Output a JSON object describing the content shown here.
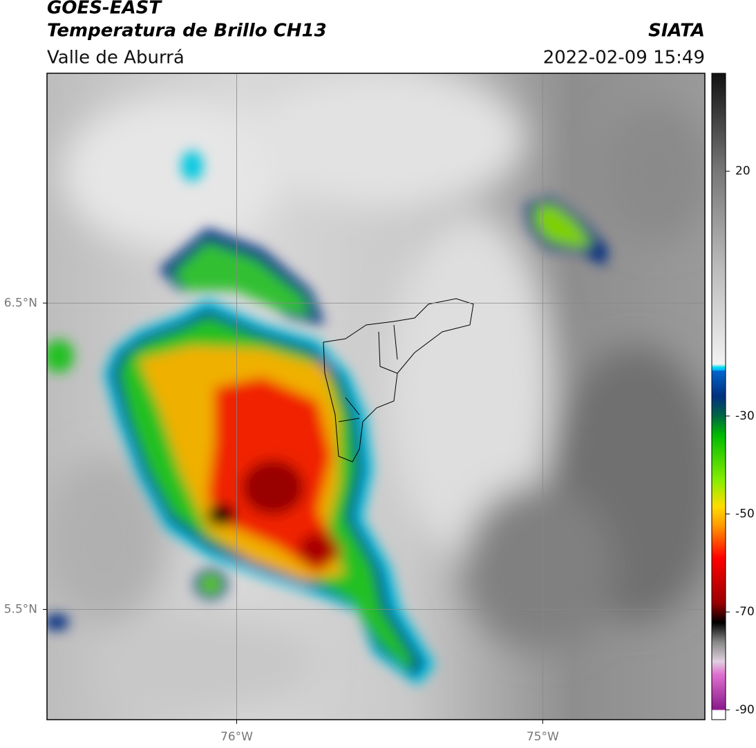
{
  "header": {
    "satellite": "GOES-EAST",
    "product": "Temperatura de Brillo CH13",
    "region": "Valle de Aburrá",
    "source": "SIATA",
    "timestamp": "2022-02-09 15:49"
  },
  "map": {
    "lon_range": [
      -76.62,
      -74.47
    ],
    "lat_range": [
      5.14,
      7.25
    ],
    "lon_ticks": [
      {
        "value": -76,
        "label": "76°W"
      },
      {
        "value": -75,
        "label": "75°W"
      }
    ],
    "lat_ticks": [
      {
        "value": 6.5,
        "label": "6.5°N"
      },
      {
        "value": 5.5,
        "label": "5.5°N"
      }
    ]
  },
  "colorbar": {
    "range": [
      -92,
      40
    ],
    "ticks": [
      20,
      -30,
      -50,
      -70,
      -90
    ]
  }
}
